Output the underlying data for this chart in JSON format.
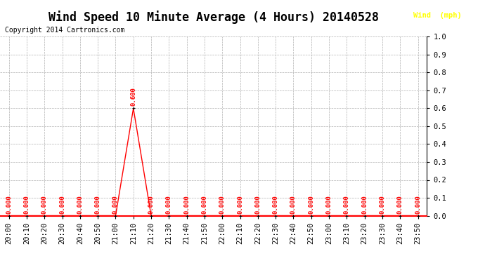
{
  "title": "Wind Speed 10 Minute Average (4 Hours) 20140528",
  "copyright_text": "Copyright 2014 Cartronics.com",
  "legend_label": "Wind  (mph)",
  "x_labels": [
    "20:00",
    "20:10",
    "20:20",
    "20:30",
    "20:40",
    "20:50",
    "21:00",
    "21:10",
    "21:20",
    "21:30",
    "21:40",
    "21:50",
    "22:00",
    "22:10",
    "22:20",
    "22:30",
    "22:40",
    "22:50",
    "23:00",
    "23:10",
    "23:20",
    "23:30",
    "23:40",
    "23:50"
  ],
  "y_values": [
    0.0,
    0.0,
    0.0,
    0.0,
    0.0,
    0.0,
    0.0,
    0.6,
    0.0,
    0.0,
    0.0,
    0.0,
    0.0,
    0.0,
    0.0,
    0.0,
    0.0,
    0.0,
    0.0,
    0.0,
    0.0,
    0.0,
    0.0,
    0.0
  ],
  "line_color": "#ff0000",
  "marker_color": "#000000",
  "label_color": "#ff0000",
  "background_color": "#ffffff",
  "grid_color": "#b0b0b0",
  "ylim": [
    0.0,
    1.0
  ],
  "yticks": [
    0.0,
    0.1,
    0.2,
    0.3,
    0.4,
    0.5,
    0.6,
    0.7,
    0.8,
    0.9,
    1.0
  ],
  "title_fontsize": 12,
  "label_fontsize": 6.5,
  "axis_fontsize": 7.5,
  "legend_bg": "#cc0000",
  "legend_text_color": "#ffff00"
}
